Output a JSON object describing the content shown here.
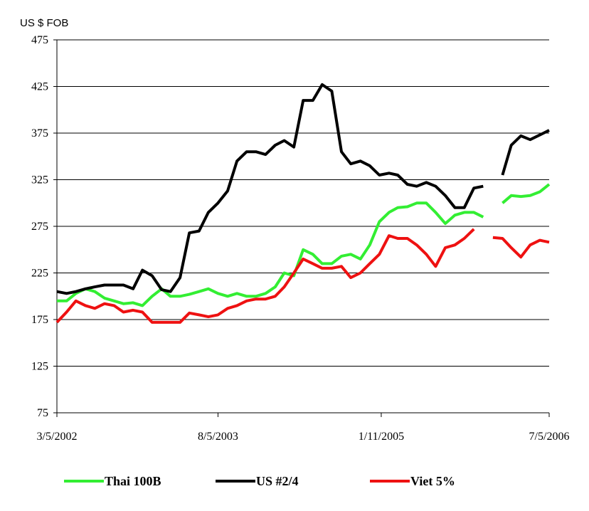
{
  "chart_data": {
    "type": "line",
    "y_axis_label": "US $ FOB",
    "x": [
      "3/5/2002",
      "4/5/2002",
      "5/5/2002",
      "6/5/2002",
      "7/5/2002",
      "8/5/2002",
      "9/5/2002",
      "10/5/2002",
      "11/5/2002",
      "12/5/2002",
      "1/5/2003",
      "2/5/2003",
      "3/5/2003",
      "4/5/2003",
      "5/5/2003",
      "6/5/2003",
      "7/5/2003",
      "8/5/2003",
      "9/5/2003",
      "10/5/2003",
      "11/5/2003",
      "12/5/2003",
      "1/5/2004",
      "2/5/2004",
      "3/5/2004",
      "4/5/2004",
      "5/5/2004",
      "6/5/2004",
      "7/5/2004",
      "8/5/2004",
      "9/5/2004",
      "10/5/2004",
      "11/5/2004",
      "12/5/2004",
      "1/5/2005",
      "2/5/2005",
      "3/5/2005",
      "4/5/2005",
      "5/5/2005",
      "6/5/2005",
      "7/5/2005",
      "8/5/2005",
      "9/5/2005",
      "10/5/2005",
      "11/5/2005",
      "12/5/2005",
      "1/5/2006",
      "2/5/2006",
      "3/5/2006",
      "4/5/2006",
      "5/5/2006",
      "6/5/2006",
      "7/5/2006"
    ],
    "series": [
      {
        "name": "Thai 100B",
        "color": "#33ee33",
        "values": [
          195,
          195,
          203,
          208,
          205,
          198,
          195,
          192,
          193,
          190,
          200,
          208,
          200,
          200,
          202,
          205,
          208,
          203,
          200,
          203,
          200,
          200,
          203,
          210,
          225,
          222,
          250,
          245,
          235,
          235,
          243,
          245,
          240,
          255,
          280,
          290,
          295,
          296,
          300,
          300,
          290,
          278,
          287,
          290,
          290,
          285,
          null,
          300,
          308,
          307,
          308,
          312,
          320
        ]
      },
      {
        "name": "US #2/4",
        "color": "#000000",
        "values": [
          205,
          203,
          205,
          208,
          210,
          212,
          212,
          212,
          208,
          228,
          222,
          207,
          205,
          220,
          268,
          270,
          290,
          300,
          313,
          345,
          355,
          355,
          352,
          362,
          367,
          360,
          410,
          410,
          427,
          420,
          355,
          342,
          345,
          340,
          330,
          332,
          330,
          320,
          318,
          322,
          318,
          308,
          295,
          295,
          316,
          318,
          null,
          330,
          362,
          372,
          368,
          373,
          378
        ]
      },
      {
        "name": "Viet 5%",
        "color": "#ee1111",
        "values": [
          172,
          183,
          195,
          190,
          187,
          192,
          190,
          183,
          185,
          183,
          172,
          172,
          172,
          172,
          182,
          180,
          178,
          180,
          187,
          190,
          195,
          197,
          197,
          200,
          210,
          225,
          240,
          235,
          230,
          230,
          232,
          220,
          225,
          235,
          245,
          265,
          262,
          262,
          255,
          245,
          232,
          252,
          255,
          262,
          272,
          null,
          263,
          262,
          252,
          242,
          255,
          260,
          258
        ]
      }
    ],
    "xlim": [
      "3/5/2002",
      "7/5/2006"
    ],
    "xticks": [
      "3/5/2002",
      "8/5/2003",
      "1/11/2005",
      "7/5/2006"
    ],
    "ylim": [
      75,
      475
    ],
    "yticks": [
      75,
      125,
      175,
      225,
      275,
      325,
      375,
      425,
      475
    ],
    "grid": true
  }
}
